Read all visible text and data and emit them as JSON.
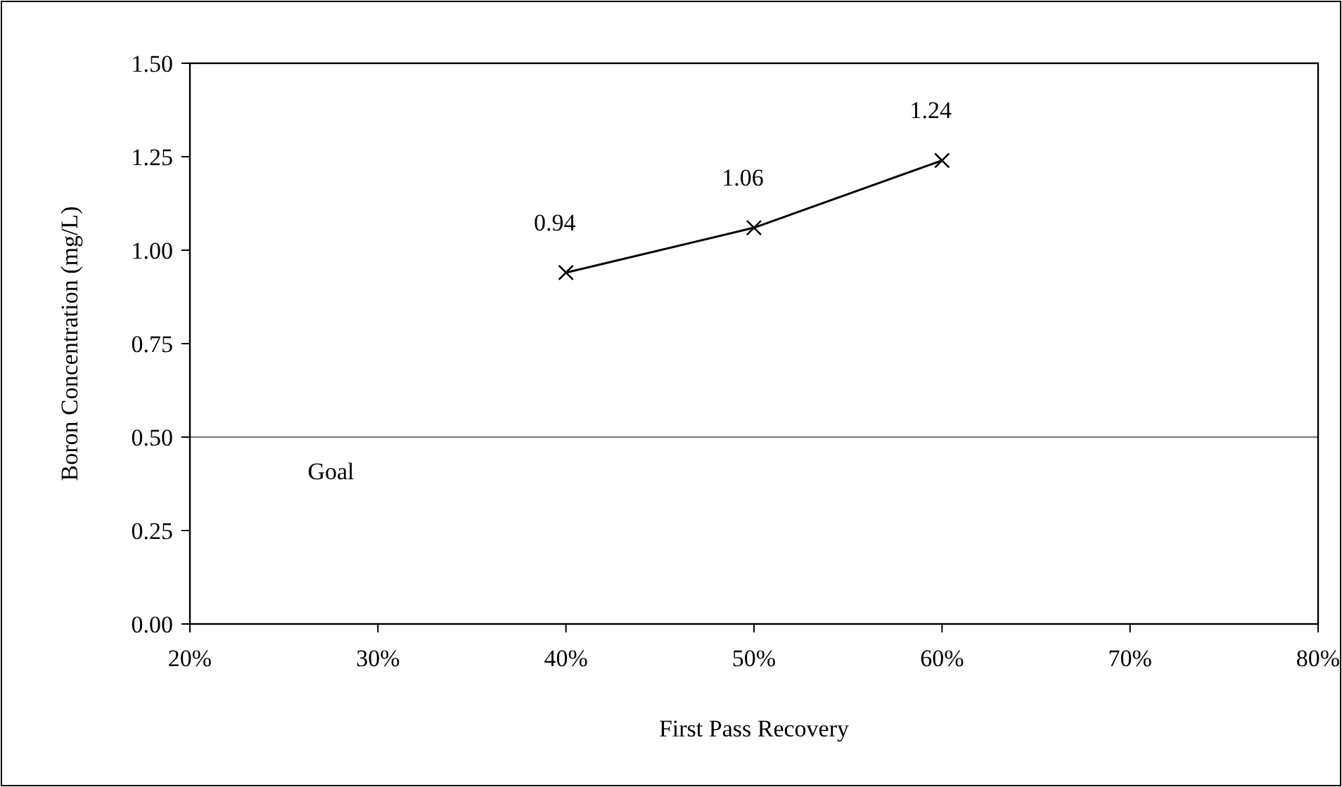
{
  "chart_data": {
    "type": "line",
    "xlabel": "First Pass Recovery",
    "ylabel": "Boron Concentration (mg/L)",
    "x": [
      40,
      50,
      60
    ],
    "series": [
      {
        "color": "#000000",
        "values": [
          0.94,
          1.06,
          1.24
        ]
      }
    ],
    "data_labels": true,
    "marker": "cross",
    "line_style": "solid",
    "grid": false,
    "xlim": [
      20,
      80
    ],
    "xticks": [
      {
        "value": 20,
        "label": "20%"
      },
      {
        "value": 30,
        "label": "30%"
      },
      {
        "value": 40,
        "label": "40%"
      },
      {
        "value": 50,
        "label": "50%"
      },
      {
        "value": 60,
        "label": "60%"
      },
      {
        "value": 70,
        "label": "70%"
      },
      {
        "value": 80,
        "label": "80%"
      }
    ],
    "ylim": [
      0,
      1.5
    ],
    "yticks": [
      {
        "value": 0,
        "label": "0.00"
      },
      {
        "value": 0.25,
        "label": "0.25"
      },
      {
        "value": 0.5,
        "label": "0.50"
      },
      {
        "value": 0.75,
        "label": "0.75"
      },
      {
        "value": 1,
        "label": "1.00"
      },
      {
        "value": 1.25,
        "label": "1.25"
      },
      {
        "value": 1.5,
        "label": "1.50"
      }
    ],
    "ref_lines": [
      {
        "axis": "y",
        "value": 0.5,
        "label": "Goal",
        "color": "#808080"
      }
    ]
  }
}
